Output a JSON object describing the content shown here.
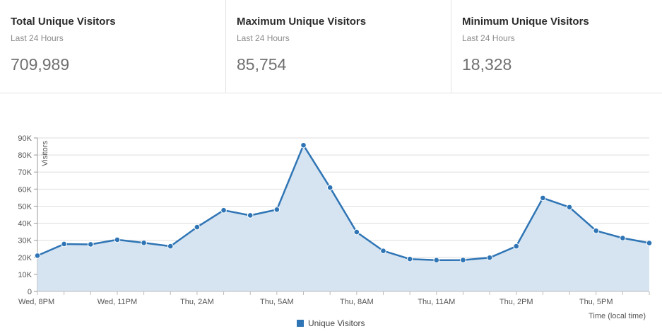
{
  "stats": [
    {
      "title": "Total Unique Visitors",
      "subtitle": "Last 24 Hours",
      "value": "709,989"
    },
    {
      "title": "Maximum Unique Visitors",
      "subtitle": "Last 24 Hours",
      "value": "85,754"
    },
    {
      "title": "Minimum Unique Visitors",
      "subtitle": "Last 24 Hours",
      "value": "18,328"
    }
  ],
  "colors": {
    "line": "#2f75b5",
    "area": "#d6e4f1",
    "grid": "#dddddd"
  },
  "chart_data": {
    "type": "area",
    "title": "",
    "xlabel": "Time (local time)",
    "ylabel": "Visitors",
    "x_tick_labels": [
      "Wed, 8PM",
      "Wed, 11PM",
      "Thu, 2AM",
      "Thu, 5AM",
      "Thu, 8AM",
      "Thu, 11AM",
      "Thu, 2PM",
      "Thu, 5PM"
    ],
    "y_tick_labels": [
      "0",
      "10K",
      "20K",
      "30K",
      "40K",
      "50K",
      "60K",
      "70K",
      "80K",
      "90K"
    ],
    "ylim": [
      0,
      90000
    ],
    "grid": true,
    "legend_position": "bottom-center",
    "series": [
      {
        "name": "Unique Visitors",
        "x": [
          "Wed, 8PM",
          "Wed, 9PM",
          "Wed, 10PM",
          "Wed, 11PM",
          "Thu, 12AM",
          "Thu, 1AM",
          "Thu, 2AM",
          "Thu, 3AM",
          "Thu, 4AM",
          "Thu, 5AM",
          "Thu, 6AM",
          "Thu, 7AM",
          "Thu, 8AM",
          "Thu, 9AM",
          "Thu, 10AM",
          "Thu, 11AM",
          "Thu, 12PM",
          "Thu, 1PM",
          "Thu, 2PM",
          "Thu, 3PM",
          "Thu, 4PM",
          "Thu, 5PM",
          "Thu, 6PM",
          "Thu, 7PM"
        ],
        "values": [
          21000,
          27800,
          27600,
          30300,
          28500,
          26500,
          37700,
          47600,
          44600,
          48000,
          85754,
          60900,
          34800,
          23800,
          19000,
          18328,
          18400,
          19800,
          26500,
          54800,
          49400,
          35600,
          31300,
          28400
        ]
      }
    ]
  }
}
